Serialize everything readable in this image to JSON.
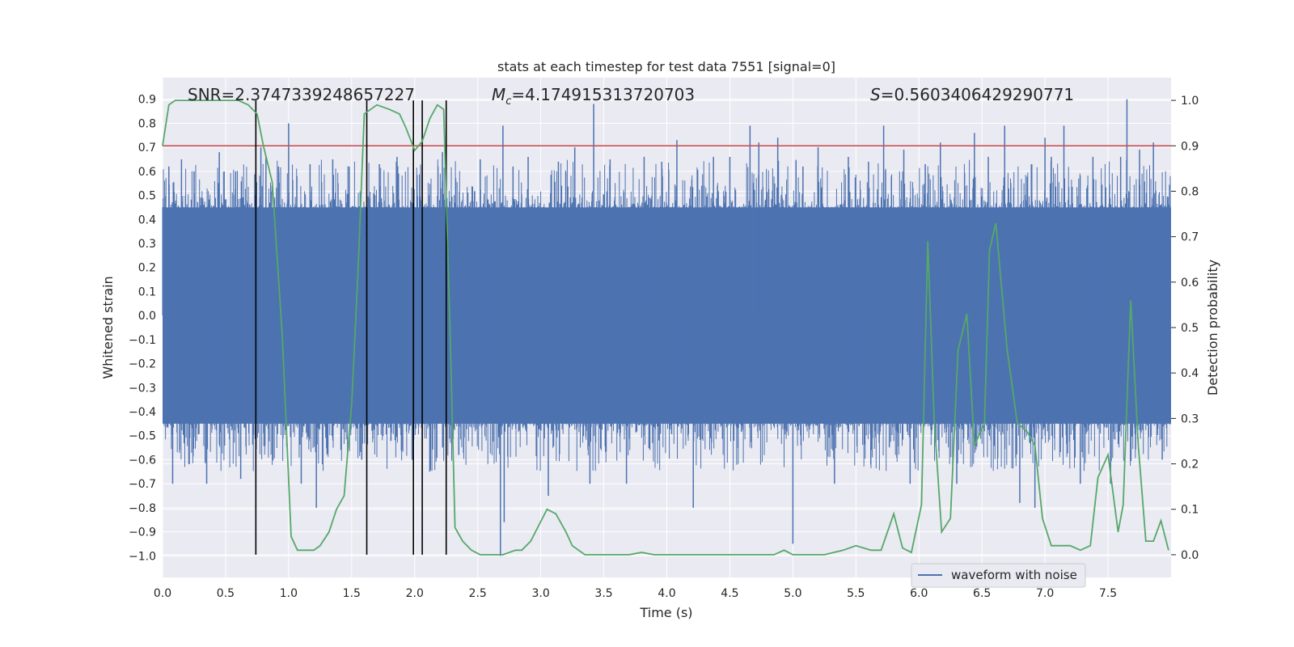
{
  "chart_data": {
    "type": "line",
    "title": "stats at each timestep for test data 7551 [signal=0]",
    "xlabel": "Time (s)",
    "ylabel_left": "Whitened strain",
    "ylabel_right": "Detection probability",
    "xlim": [
      0.0,
      8.0
    ],
    "ylim_left": [
      -1.09,
      0.99
    ],
    "ylim_right": [
      -0.05,
      1.05
    ],
    "x_ticks": [
      0.0,
      0.5,
      1.0,
      1.5,
      2.0,
      2.5,
      3.0,
      3.5,
      4.0,
      4.5,
      5.0,
      5.5,
      6.0,
      6.5,
      7.0,
      7.5
    ],
    "x_tick_labels": [
      "0.0",
      "0.5",
      "1.0",
      "1.5",
      "2.0",
      "2.5",
      "3.0",
      "3.5",
      "4.0",
      "4.5",
      "5.0",
      "5.5",
      "6.0",
      "6.5",
      "7.0",
      "7.5"
    ],
    "y_left_ticks": [
      -1.0,
      -0.9,
      -0.8,
      -0.7,
      -0.6,
      -0.5,
      -0.4,
      -0.3,
      -0.2,
      -0.1,
      0.0,
      0.1,
      0.2,
      0.3,
      0.4,
      0.5,
      0.6,
      0.7,
      0.8,
      0.9
    ],
    "y_left_tick_labels": [
      "−1.0",
      "−0.9",
      "−0.8",
      "−0.7",
      "−0.6",
      "−0.5",
      "−0.4",
      "−0.3",
      "−0.2",
      "−0.1",
      "0.0",
      "0.1",
      "0.2",
      "0.3",
      "0.4",
      "0.5",
      "0.6",
      "0.7",
      "0.8",
      "0.9"
    ],
    "y_right_ticks": [
      0.0,
      0.1,
      0.2,
      0.3,
      0.4,
      0.5,
      0.6,
      0.7,
      0.8,
      0.9,
      1.0
    ],
    "y_right_tick_labels": [
      "0.0",
      "0.1",
      "0.2",
      "0.3",
      "0.4",
      "0.5",
      "0.6",
      "0.7",
      "0.8",
      "0.9",
      "1.0"
    ],
    "grid": true,
    "legend": {
      "placement": "lower-right",
      "entries": [
        {
          "label": "waveform with noise",
          "color": "#4c72b0"
        }
      ]
    },
    "annotations": {
      "snr": "SNR=2.3747339248657227",
      "mc_symbol": "M",
      "mc_sub": "c",
      "mc_value": "=4.174915313720703",
      "s_symbol": "S",
      "s_value": "=0.5603406429290771"
    },
    "waveform_series": {
      "name": "waveform with noise",
      "color": "#4c72b0",
      "x_range": [
        0.0,
        8.0
      ],
      "band_envelope": [
        -0.45,
        0.45
      ],
      "spikes": [
        {
          "x": 0.05,
          "y": 0.62
        },
        {
          "x": 0.08,
          "y": -0.7
        },
        {
          "x": 0.15,
          "y": 0.65
        },
        {
          "x": 0.25,
          "y": 0.6
        },
        {
          "x": 0.35,
          "y": -0.7
        },
        {
          "x": 0.45,
          "y": 0.68
        },
        {
          "x": 0.58,
          "y": 0.6
        },
        {
          "x": 0.62,
          "y": -0.68
        },
        {
          "x": 0.78,
          "y": 0.7
        },
        {
          "x": 0.82,
          "y": 0.66
        },
        {
          "x": 0.92,
          "y": 0.62
        },
        {
          "x": 1.0,
          "y": 0.8
        },
        {
          "x": 1.1,
          "y": -0.7
        },
        {
          "x": 1.17,
          "y": 0.63
        },
        {
          "x": 1.22,
          "y": -0.8
        },
        {
          "x": 1.35,
          "y": 0.65
        },
        {
          "x": 1.48,
          "y": 0.62
        },
        {
          "x": 1.58,
          "y": -0.6
        },
        {
          "x": 1.72,
          "y": 0.63
        },
        {
          "x": 1.86,
          "y": 0.66
        },
        {
          "x": 1.98,
          "y": -0.6
        },
        {
          "x": 2.12,
          "y": -0.65
        },
        {
          "x": 2.22,
          "y": 0.68
        },
        {
          "x": 2.35,
          "y": -0.58
        },
        {
          "x": 2.52,
          "y": 0.65
        },
        {
          "x": 2.68,
          "y": -1.0
        },
        {
          "x": 2.71,
          "y": -0.86
        },
        {
          "x": 2.7,
          "y": 0.79
        },
        {
          "x": 2.78,
          "y": 0.62
        },
        {
          "x": 2.9,
          "y": 0.66
        },
        {
          "x": 3.06,
          "y": -0.75
        },
        {
          "x": 3.14,
          "y": 0.64
        },
        {
          "x": 3.27,
          "y": 0.7
        },
        {
          "x": 3.39,
          "y": -0.7
        },
        {
          "x": 3.42,
          "y": 0.88
        },
        {
          "x": 3.55,
          "y": 0.65
        },
        {
          "x": 3.68,
          "y": -0.7
        },
        {
          "x": 3.82,
          "y": 0.66
        },
        {
          "x": 3.96,
          "y": 0.64
        },
        {
          "x": 4.08,
          "y": 0.73
        },
        {
          "x": 4.21,
          "y": -0.8
        },
        {
          "x": 4.37,
          "y": 0.66
        },
        {
          "x": 4.5,
          "y": 0.66
        },
        {
          "x": 4.66,
          "y": 0.79
        },
        {
          "x": 4.73,
          "y": 0.72
        },
        {
          "x": 4.88,
          "y": 0.74
        },
        {
          "x": 5.0,
          "y": -0.95
        },
        {
          "x": 5.08,
          "y": 0.62
        },
        {
          "x": 5.2,
          "y": 0.7
        },
        {
          "x": 5.33,
          "y": -0.7
        },
        {
          "x": 5.44,
          "y": 0.66
        },
        {
          "x": 5.6,
          "y": 0.64
        },
        {
          "x": 5.72,
          "y": 0.79
        },
        {
          "x": 5.88,
          "y": 0.69
        },
        {
          "x": 5.93,
          "y": -0.7
        },
        {
          "x": 6.05,
          "y": 0.63
        },
        {
          "x": 6.17,
          "y": 0.72
        },
        {
          "x": 6.3,
          "y": -0.7
        },
        {
          "x": 6.44,
          "y": 0.76
        },
        {
          "x": 6.55,
          "y": 0.66
        },
        {
          "x": 6.68,
          "y": 0.79
        },
        {
          "x": 6.8,
          "y": -0.78
        },
        {
          "x": 6.92,
          "y": -0.8
        },
        {
          "x": 7.0,
          "y": 0.74
        },
        {
          "x": 7.05,
          "y": 0.66
        },
        {
          "x": 7.15,
          "y": 0.79
        },
        {
          "x": 7.28,
          "y": -0.7
        },
        {
          "x": 7.38,
          "y": 0.66
        },
        {
          "x": 7.52,
          "y": -0.7
        },
        {
          "x": 7.6,
          "y": 0.66
        },
        {
          "x": 7.65,
          "y": 0.9
        },
        {
          "x": 7.75,
          "y": 0.69
        },
        {
          "x": 7.86,
          "y": 0.72
        },
        {
          "x": 7.93,
          "y": -0.6
        }
      ]
    },
    "probability_series": {
      "color": "#55a868",
      "x": [
        0.0,
        0.05,
        0.1,
        0.2,
        0.3,
        0.5,
        0.6,
        0.68,
        0.75,
        0.8,
        0.87,
        0.95,
        1.02,
        1.07,
        1.12,
        1.2,
        1.25,
        1.32,
        1.38,
        1.44,
        1.5,
        1.55,
        1.6,
        1.65,
        1.7,
        1.8,
        1.88,
        1.93,
        2.0,
        2.06,
        2.12,
        2.18,
        2.23,
        2.28,
        2.32,
        2.38,
        2.45,
        2.52,
        2.6,
        2.7,
        2.8,
        2.85,
        2.92,
        3.05,
        3.12,
        3.2,
        3.25,
        3.35,
        3.5,
        3.7,
        3.8,
        3.9,
        4.0,
        4.15,
        4.3,
        4.5,
        4.7,
        4.85,
        4.93,
        5.0,
        5.1,
        5.25,
        5.4,
        5.5,
        5.62,
        5.7,
        5.8,
        5.87,
        5.94,
        6.02,
        6.07,
        6.12,
        6.18,
        6.25,
        6.31,
        6.38,
        6.44,
        6.52,
        6.56,
        6.61,
        6.7,
        6.78,
        6.86,
        6.92,
        6.98,
        7.05,
        7.12,
        7.2,
        7.28,
        7.36,
        7.42,
        7.5,
        7.58,
        7.62,
        7.68,
        7.74,
        7.8,
        7.86,
        7.92,
        7.98
      ],
      "y": [
        0.9,
        0.99,
        1.0,
        1.0,
        1.0,
        1.0,
        1.0,
        0.99,
        0.97,
        0.9,
        0.82,
        0.48,
        0.04,
        0.01,
        0.01,
        0.01,
        0.02,
        0.05,
        0.1,
        0.13,
        0.33,
        0.62,
        0.97,
        0.98,
        0.99,
        0.98,
        0.97,
        0.94,
        0.89,
        0.91,
        0.96,
        0.99,
        0.98,
        0.5,
        0.06,
        0.03,
        0.01,
        0.0,
        0.0,
        0.0,
        0.01,
        0.01,
        0.03,
        0.1,
        0.09,
        0.05,
        0.02,
        0.0,
        0.0,
        0.0,
        0.005,
        0.0,
        0.0,
        0.0,
        0.0,
        0.0,
        0.0,
        0.0,
        0.01,
        0.0,
        0.0,
        0.0,
        0.01,
        0.02,
        0.01,
        0.01,
        0.09,
        0.015,
        0.005,
        0.11,
        0.69,
        0.3,
        0.05,
        0.08,
        0.45,
        0.53,
        0.24,
        0.29,
        0.67,
        0.73,
        0.45,
        0.29,
        0.27,
        0.24,
        0.08,
        0.02,
        0.02,
        0.02,
        0.01,
        0.02,
        0.17,
        0.22,
        0.05,
        0.11,
        0.56,
        0.24,
        0.03,
        0.03,
        0.075,
        0.01
      ]
    },
    "threshold_line": {
      "y_right": 0.9,
      "color": "#c44e52"
    },
    "event_lines": [
      0.74,
      1.62,
      1.99,
      2.06,
      2.25
    ],
    "event_line_color": "#000000"
  }
}
